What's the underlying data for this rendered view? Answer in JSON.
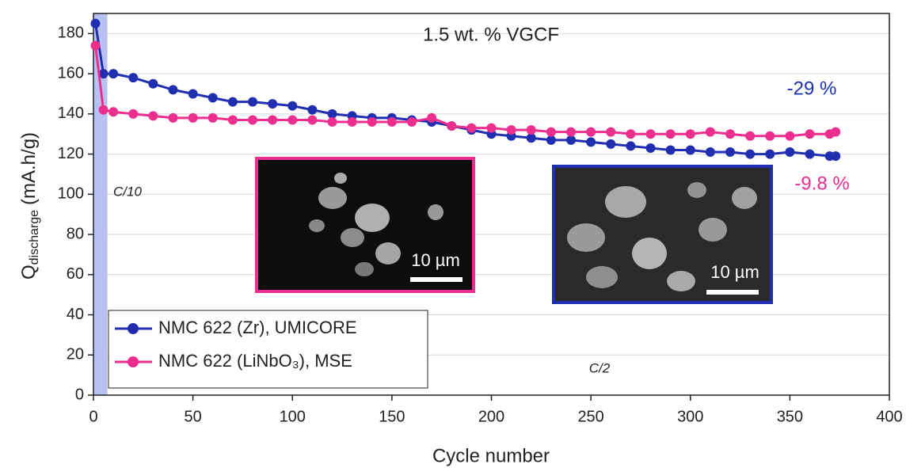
{
  "chart_data": {
    "type": "line",
    "x_label": "Cycle number",
    "y_label": {
      "main": "Q",
      "sub": "discharge",
      "unit": "(mA.h/g)"
    },
    "x": [
      1,
      5,
      10,
      20,
      30,
      40,
      50,
      60,
      70,
      80,
      90,
      100,
      110,
      120,
      130,
      140,
      150,
      160,
      170,
      180,
      190,
      200,
      210,
      220,
      230,
      240,
      250,
      260,
      270,
      280,
      290,
      300,
      310,
      320,
      330,
      340,
      350,
      360,
      370,
      373
    ],
    "series": [
      {
        "name": "NMC 622 (Zr), UMICORE",
        "color": "#1f2fb0",
        "values": [
          185,
          160,
          160,
          158,
          155,
          152,
          150,
          148,
          146,
          146,
          145,
          144,
          142,
          140,
          139,
          138,
          138,
          137,
          136,
          134,
          132,
          130,
          129,
          128,
          127,
          127,
          126,
          125,
          124,
          123,
          122,
          122,
          121,
          121,
          120,
          120,
          121,
          120,
          119,
          119
        ]
      },
      {
        "name": "NMC 622 (LiNbO₃), MSE",
        "color": "#ec2f8f",
        "values": [
          174,
          142,
          141,
          140,
          139,
          138,
          138,
          138,
          137,
          137,
          137,
          137,
          137,
          136,
          136,
          136,
          136,
          136,
          138,
          134,
          133,
          133,
          132,
          132,
          131,
          131,
          131,
          131,
          130,
          130,
          130,
          130,
          131,
          130,
          129,
          129,
          129,
          130,
          130,
          131
        ]
      }
    ],
    "xlim": [
      0,
      400
    ],
    "xticks": [
      0,
      50,
      100,
      150,
      200,
      250,
      300,
      350,
      400
    ],
    "ylim": [
      0,
      190
    ],
    "yticks": [
      0,
      20,
      40,
      60,
      80,
      100,
      120,
      140,
      160,
      180
    ],
    "grid": true,
    "legend": "lower left",
    "highlight_xrange": [
      0,
      7
    ],
    "annotations": [
      {
        "text": "1.5 wt. % VGCF"
      },
      {
        "text": "-29 %",
        "color": "#1f2fb0"
      },
      {
        "text": "-9.8 %",
        "color": "#ec2f8f"
      },
      {
        "text": "C/10"
      },
      {
        "text": "C/2"
      },
      {
        "text": "10 µm"
      },
      {
        "text": "10 µm"
      }
    ]
  }
}
